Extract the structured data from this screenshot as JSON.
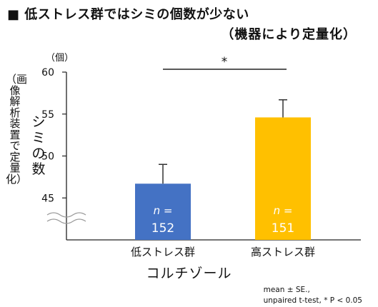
{
  "header": {
    "title": "■ 低ストレス群ではシミの個数が少ない",
    "subtitle": "（機器により定量化）"
  },
  "side_note": "（画像解析装置で定量化）",
  "footnote": {
    "line1": "mean ± SE.,",
    "line2": "unpaired t-test, * P < 0.05"
  },
  "colors": {
    "low_stress": "#4472C4",
    "high_stress": "#FFC000",
    "axis": "#222222",
    "error_bar": "#333333"
  },
  "chart_data": {
    "type": "bar",
    "title": "低ストレス群ではシミの個数が少ない",
    "xlabel": "コルチゾール",
    "ylabel": "シミの数",
    "y_unit": "（個）",
    "ylim": [
      40,
      60
    ],
    "axis_break": true,
    "yticks": [
      "45",
      "50",
      "55",
      "60"
    ],
    "categories": [
      "低ストレス群",
      "高ストレス群"
    ],
    "values": [
      46.7,
      54.6
    ],
    "errors": [
      2.3,
      2.1
    ],
    "bar_labels": [
      {
        "n_label": "n =",
        "count": "152"
      },
      {
        "n_label": "n =",
        "count": "151"
      }
    ],
    "significance": "*",
    "grid": false,
    "legend": "none"
  }
}
